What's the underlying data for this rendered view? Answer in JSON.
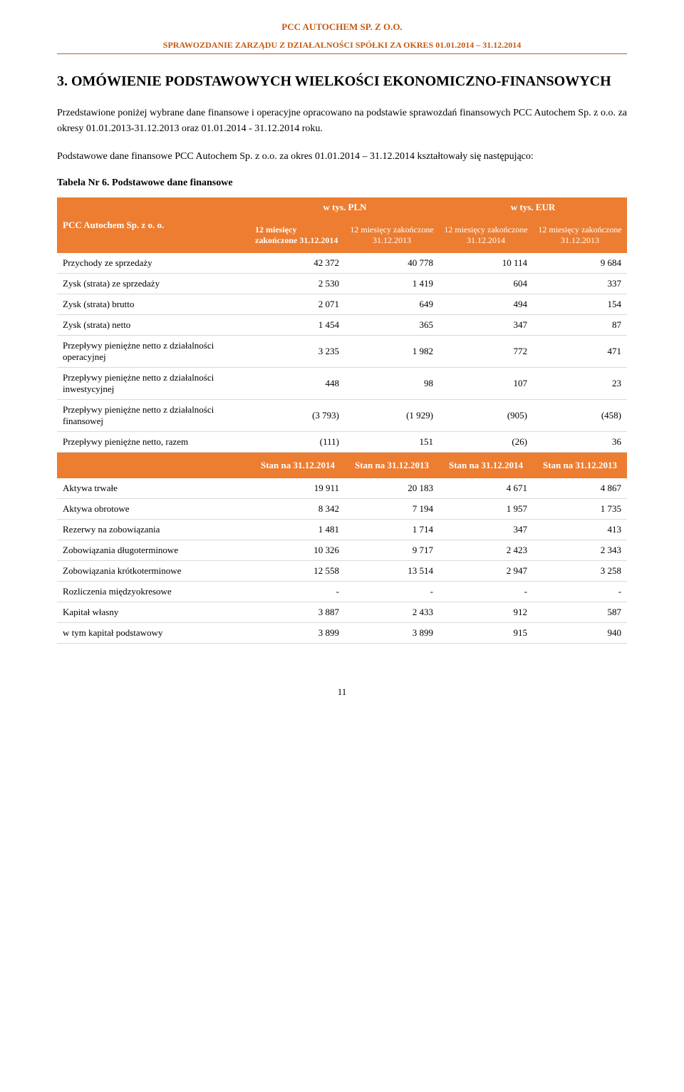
{
  "header": {
    "company": "PCC AUTOCHEM SP. Z O.O.",
    "report": "SPRAWOZDANIE ZARZĄDU Z DZIAŁALNOŚCI SPÓŁKI ZA OKRES 01.01.2014 – 31.12.2014"
  },
  "section": {
    "title": "3.  OMÓWIENIE PODSTAWOWYCH WIELKOŚCI EKONOMICZNO-FINANSOWYCH",
    "para1": "Przedstawione poniżej wybrane dane finansowe i operacyjne opracowano na podstawie sprawozdań finansowych PCC Autochem Sp. z o.o. za okresy 01.01.2013-31.12.2013 oraz 01.01.2014 - 31.12.2014 roku.",
    "para2": "Podstawowe dane finansowe PCC Autochem Sp. z o.o. za okres 01.01.2014 – 31.12.2014 kształtowały się następująco:",
    "table_caption": "Tabela Nr 6. Podstawowe dane finansowe"
  },
  "table": {
    "row_header_label": "PCC Autochem Sp. z o. o.",
    "currency_pln": "w tys. PLN",
    "currency_eur": "w tys. EUR",
    "col_headers": {
      "c1": "12 miesięcy zakończone 31.12.2014",
      "c2": "12 miesięcy zakończone 31.12.2013",
      "c3": "12 miesięcy zakończone 31.12.2014",
      "c4": "12 miesięcy zakończone 31.12.2013"
    },
    "rows_section1": [
      {
        "label": "Przychody ze sprzedaży",
        "v": [
          "42 372",
          "40 778",
          "10 114",
          "9 684"
        ]
      },
      {
        "label": "Zysk (strata) ze sprzedaży",
        "v": [
          "2 530",
          "1 419",
          "604",
          "337"
        ]
      },
      {
        "label": "Zysk (strata) brutto",
        "v": [
          "2 071",
          "649",
          "494",
          "154"
        ]
      },
      {
        "label": "Zysk (strata) netto",
        "v": [
          "1 454",
          "365",
          "347",
          "87"
        ]
      },
      {
        "label": "Przepływy pieniężne netto z działalności operacyjnej",
        "v": [
          "3 235",
          "1 982",
          "772",
          "471"
        ]
      },
      {
        "label": "Przepływy pieniężne netto z działalności inwestycyjnej",
        "v": [
          "448",
          "98",
          "107",
          "23"
        ]
      },
      {
        "label": "Przepływy pieniężne netto z działalności finansowej",
        "v": [
          "(3 793)",
          "(1 929)",
          "(905)",
          "(458)"
        ]
      },
      {
        "label": "Przepływy pieniężne netto, razem",
        "v": [
          "(111)",
          "151",
          "(26)",
          "36"
        ]
      }
    ],
    "mid_headers": {
      "c0": "",
      "c1": "Stan na 31.12.2014",
      "c2": "Stan na 31.12.2013",
      "c3": "Stan na 31.12.2014",
      "c4": "Stan na 31.12.2013"
    },
    "rows_section2": [
      {
        "label": "Aktywa trwałe",
        "v": [
          "19 911",
          "20 183",
          "4 671",
          "4 867"
        ]
      },
      {
        "label": "Aktywa obrotowe",
        "v": [
          "8 342",
          "7 194",
          "1 957",
          "1 735"
        ]
      },
      {
        "label": "Rezerwy na zobowiązania",
        "v": [
          "1 481",
          "1 714",
          "347",
          "413"
        ]
      },
      {
        "label": "Zobowiązania długoterminowe",
        "v": [
          "10 326",
          "9 717",
          "2 423",
          "2 343"
        ]
      },
      {
        "label": "Zobowiązania krótkoterminowe",
        "v": [
          "12 558",
          "13 514",
          "2 947",
          "3 258"
        ]
      },
      {
        "label": "Rozliczenia międzyokresowe",
        "v": [
          "-",
          "-",
          "-",
          "-"
        ]
      },
      {
        "label": "Kapitał własny",
        "v": [
          "3 887",
          "2 433",
          "912",
          "587"
        ]
      },
      {
        "label": "w tym kapitał podstawowy",
        "v": [
          "3 899",
          "3 899",
          "915",
          "940"
        ]
      }
    ]
  },
  "page_number": "11"
}
